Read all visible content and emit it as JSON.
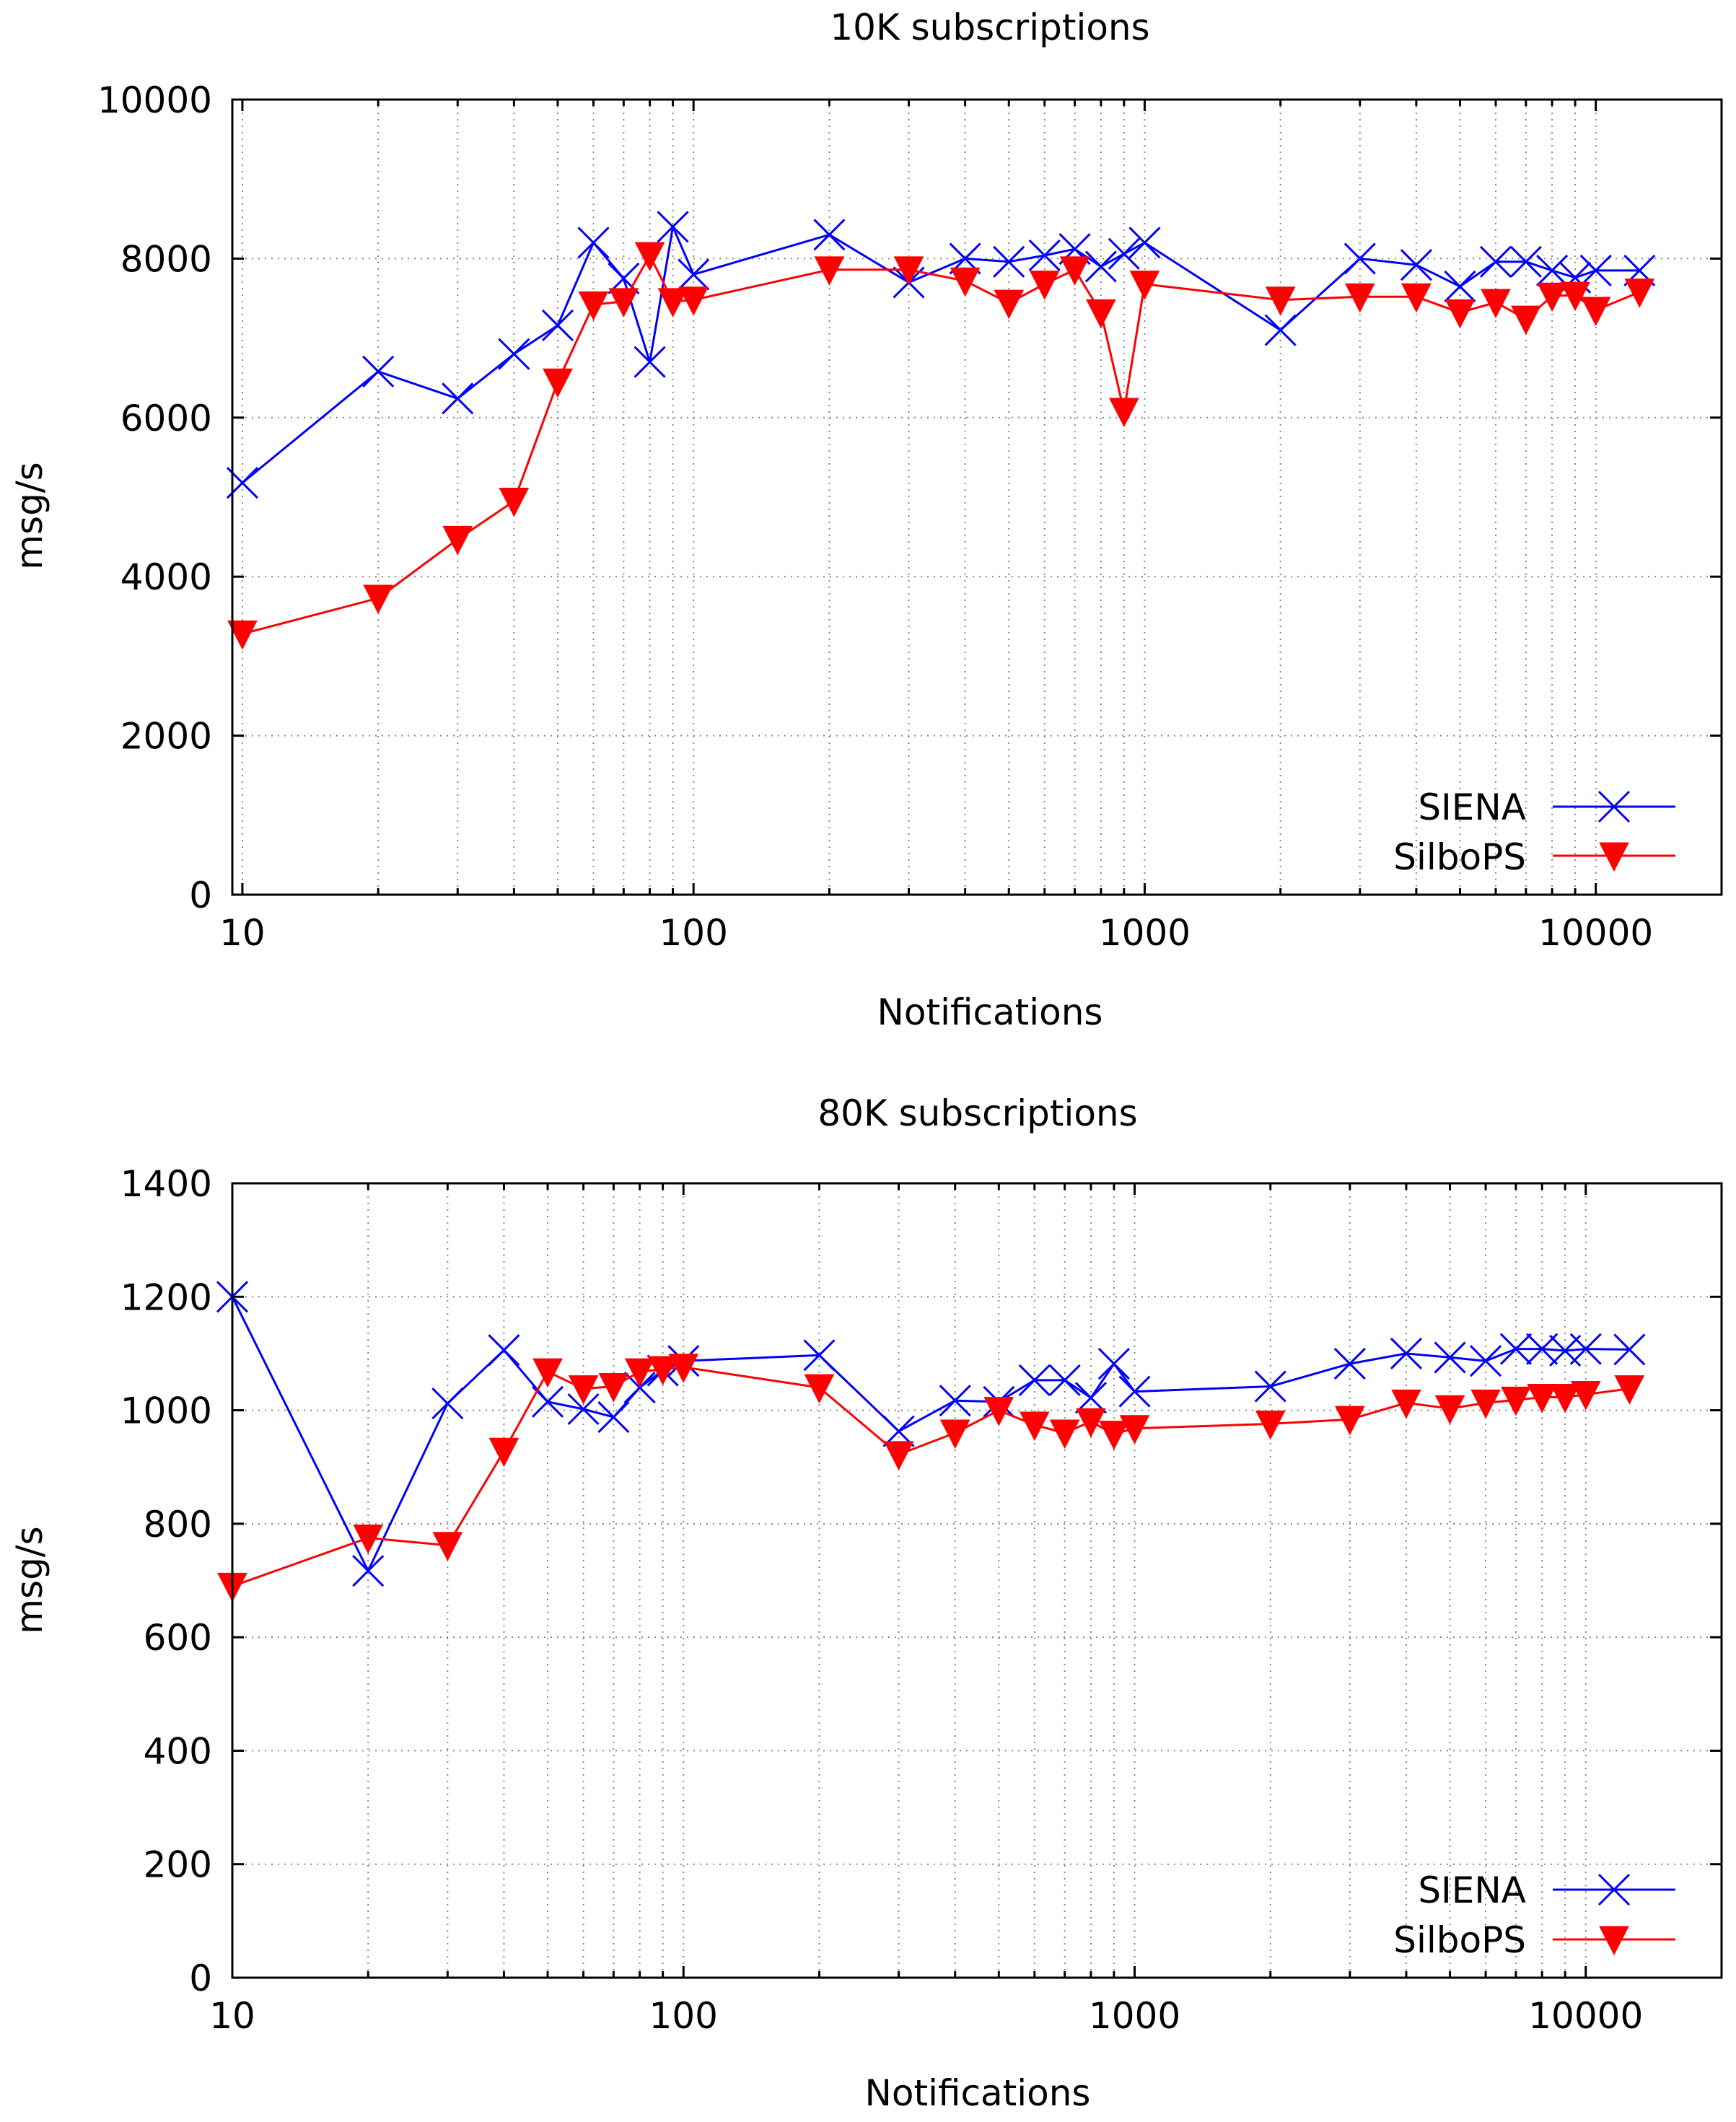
{
  "chart_data": [
    {
      "type": "line",
      "title": "10K subscriptions",
      "xlabel": "Notifications",
      "ylabel": "msg/s",
      "xscale": "log",
      "xlim": [
        9.5,
        19000
      ],
      "ylim": [
        0,
        10000
      ],
      "xticks": [
        10,
        100,
        1000,
        10000
      ],
      "xtick_labels": [
        "10",
        "100",
        "1000",
        "10000"
      ],
      "yticks": [
        0,
        2000,
        4000,
        6000,
        8000,
        10000
      ],
      "ytick_labels": [
        "0",
        "2000",
        "4000",
        "6000",
        "8000",
        "10000"
      ],
      "grid": true,
      "legend_position": "bottom-right",
      "series": [
        {
          "name": "SIENA",
          "color": "#0000ff",
          "marker": "x",
          "x": [
            10,
            20,
            30,
            40,
            50,
            60,
            70,
            80,
            90,
            100,
            200,
            300,
            400,
            500,
            600,
            700,
            800,
            900,
            1000,
            2000,
            3000,
            4000,
            5000,
            6000,
            7000,
            8000,
            9000,
            10000,
            12500
          ],
          "y": [
            5180,
            6580,
            6240,
            6800,
            7160,
            8200,
            7750,
            6700,
            8400,
            7800,
            8300,
            7700,
            8000,
            7960,
            8040,
            8120,
            7900,
            8060,
            8200,
            7100,
            8000,
            7920,
            7650,
            7960,
            7960,
            7850,
            7760,
            7850,
            7850
          ]
        },
        {
          "name": "SilboPS",
          "color": "#ff0000",
          "marker": "triangle-down",
          "x": [
            10,
            20,
            30,
            40,
            50,
            60,
            70,
            80,
            90,
            100,
            200,
            300,
            400,
            500,
            600,
            700,
            800,
            900,
            1000,
            2000,
            3000,
            4000,
            5000,
            6000,
            7000,
            8000,
            9000,
            10000,
            12500
          ],
          "y": [
            3280,
            3730,
            4470,
            4950,
            6450,
            7420,
            7460,
            8040,
            7460,
            7480,
            7860,
            7860,
            7720,
            7440,
            7680,
            7860,
            7320,
            6080,
            7680,
            7480,
            7520,
            7520,
            7320,
            7450,
            7240,
            7530,
            7540,
            7350,
            7580
          ]
        }
      ]
    },
    {
      "type": "line",
      "title": "80K subscriptions",
      "xlabel": "Notifications",
      "ylabel": "msg/s",
      "xscale": "log",
      "xlim": [
        10,
        20000
      ],
      "ylim": [
        0,
        1400
      ],
      "xticks": [
        10,
        100,
        1000,
        10000
      ],
      "xtick_labels": [
        "10",
        "100",
        "1000",
        "10000"
      ],
      "yticks": [
        0,
        200,
        400,
        600,
        800,
        1000,
        1200,
        1400
      ],
      "ytick_labels": [
        "0",
        "200",
        "400",
        "600",
        "800",
        "1000",
        "1200",
        "1400"
      ],
      "grid": true,
      "legend_position": "bottom-right",
      "series": [
        {
          "name": "SIENA",
          "color": "#0000ff",
          "marker": "x",
          "x": [
            10,
            20,
            30,
            40,
            50,
            60,
            70,
            80,
            90,
            100,
            200,
            300,
            400,
            500,
            600,
            700,
            800,
            900,
            1000,
            2000,
            3000,
            4000,
            5000,
            6000,
            7000,
            8000,
            9000,
            10000,
            12500
          ],
          "y": [
            1200,
            717,
            1012,
            1106,
            1015,
            1002,
            988,
            1040,
            1070,
            1087,
            1097,
            963,
            1017,
            1015,
            1053,
            1053,
            1022,
            1082,
            1033,
            1042,
            1082,
            1100,
            1093,
            1087,
            1108,
            1108,
            1105,
            1108,
            1107
          ]
        },
        {
          "name": "SilboPS",
          "color": "#ff0000",
          "marker": "triangle-down",
          "x": [
            10,
            20,
            30,
            40,
            50,
            60,
            70,
            80,
            90,
            100,
            200,
            300,
            400,
            500,
            600,
            700,
            800,
            900,
            1000,
            2000,
            3000,
            4000,
            5000,
            6000,
            7000,
            8000,
            9000,
            10000,
            12500
          ],
          "y": [
            690,
            775,
            762,
            928,
            1068,
            1038,
            1042,
            1068,
            1072,
            1076,
            1040,
            922,
            960,
            1000,
            974,
            960,
            980,
            958,
            968,
            976,
            984,
            1013,
            1003,
            1013,
            1018,
            1023,
            1023,
            1028,
            1038
          ]
        }
      ]
    }
  ]
}
